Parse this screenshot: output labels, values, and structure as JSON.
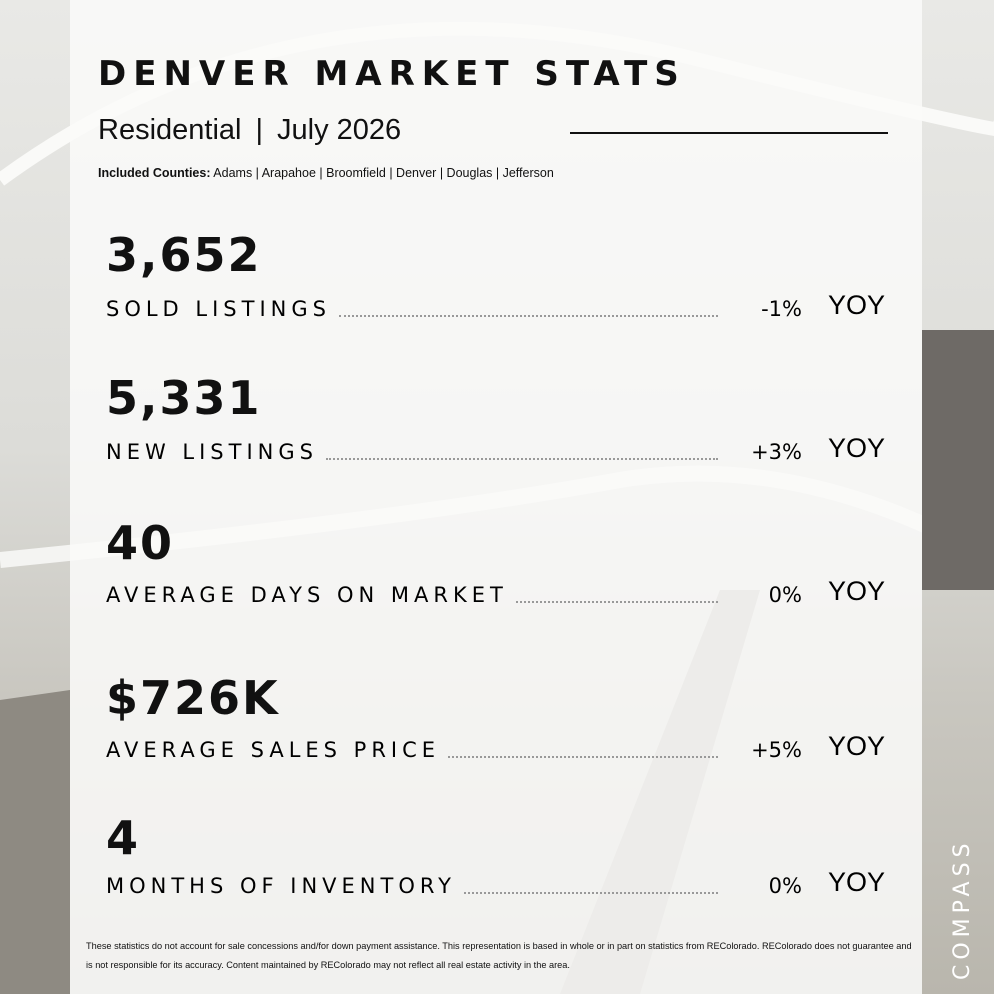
{
  "header": {
    "title": "DENVER MARKET STATS",
    "segment": "Residential",
    "separator": "|",
    "period": "July 2026",
    "counties_label": "Included Counties:",
    "counties": "Adams | Arapahoe | Broomfield | Denver | Douglas | Jefferson"
  },
  "stats": [
    {
      "value": "3,652",
      "label": "SOLD LISTINGS",
      "change": "-1%",
      "unit": "YOY"
    },
    {
      "value": "5,331",
      "label": "NEW LISTINGS",
      "change": "+3%",
      "unit": "YOY"
    },
    {
      "value": "40",
      "label": "AVERAGE DAYS ON MARKET",
      "change": "0%",
      "unit": "YOY"
    },
    {
      "value": "$726K",
      "label": "AVERAGE SALES PRICE",
      "change": "+5%",
      "unit": "YOY"
    },
    {
      "value": "4",
      "label": "MONTHS OF INVENTORY",
      "change": "0%",
      "unit": "YOY"
    }
  ],
  "disclaimer": "These statistics do not account for sale concessions and/for down payment assistance. This representation is based in whole or in part on statistics from REColorado. REColorado does not guarantee and is not responsible for its accuracy. Content maintained by REColorado may not reflect all real estate activity in the area.",
  "brand": "COMPASS"
}
